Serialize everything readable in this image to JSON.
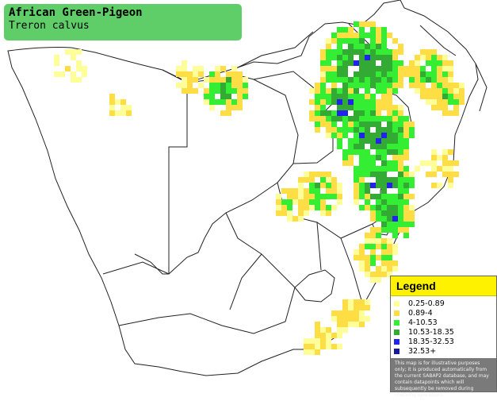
{
  "title": {
    "common_name": "African Green-Pigeon",
    "scientific_name": "Treron calvus"
  },
  "legend": {
    "heading": "Legend",
    "items": [
      {
        "label": "0.25-0.89",
        "color": "#ffff99"
      },
      {
        "label": "0.89-4",
        "color": "#ffdd44"
      },
      {
        "label": "4-10.53",
        "color": "#33ee33"
      },
      {
        "label": "10.53-18.35",
        "color": "#33aa33"
      },
      {
        "label": "18.35-32.53",
        "color": "#2222ee"
      },
      {
        "label": "32.53+",
        "color": "#1a1a99"
      }
    ],
    "disclaimer": "This map is for illustrative purposes only; it is produced automatically from the current SABAP2 database, and may contain datapoints which will subsequently be removed during checking operations."
  },
  "map_colors": {
    "land": "#ffffff",
    "border": "#222222",
    "title_box": "#5fce69",
    "legend_head": "#fff200"
  }
}
